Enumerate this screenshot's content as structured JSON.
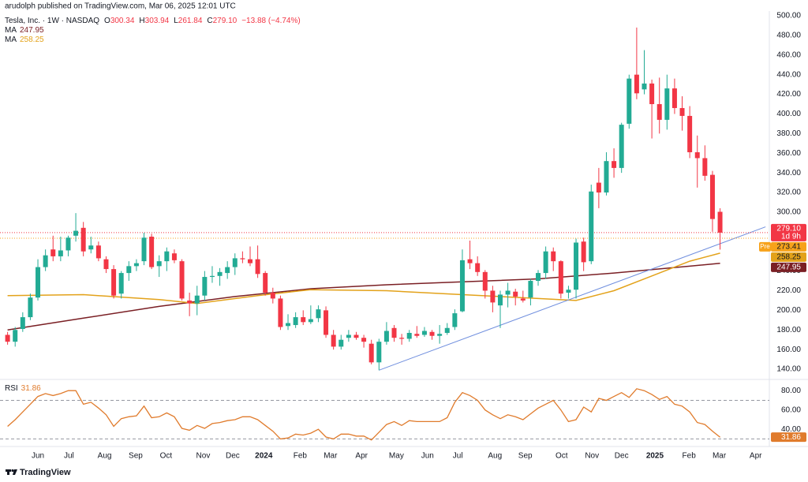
{
  "chart_data": [
    {
      "type": "candlestick",
      "publisher": "arudolph published on TradingView.com, Mar 06, 2025 12:01 UTC",
      "title": "Tesla, Inc. · 1W · NASDAQ",
      "legend": {
        "open": "O",
        "high": "H",
        "low": "L",
        "close": "C",
        "close_value": "279.10",
        "change": "−13.88 (−4.74%)"
      },
      "up_color": "#22ab94",
      "down_color": "#f23645",
      "open": [
        175,
        168,
        181,
        193,
        213,
        244,
        262,
        255,
        261,
        276,
        284,
        262,
        266,
        252,
        242,
        217,
        238,
        245,
        250,
        275,
        245,
        250,
        258,
        250,
        210,
        207,
        215,
        234,
        235,
        238,
        244,
        253,
        252,
        252,
        238,
        218,
        212,
        184,
        185,
        193,
        188,
        192,
        200,
        175,
        163,
        172,
        175,
        172,
        166,
        147,
        168,
        182,
        172,
        171,
        176,
        175,
        178,
        174,
        177,
        183,
        199,
        252,
        248,
        239,
        220,
        205,
        216,
        219,
        212,
        213,
        230,
        238,
        260,
        250,
        218,
        221,
        270,
        250,
        330,
        320,
        352,
        345,
        390,
        440,
        425,
        431,
        410,
        394,
        426,
        406,
        398,
        361,
        355,
        338,
        300.34
      ],
      "high": [
        178,
        183,
        198,
        217,
        252,
        262,
        276,
        275,
        276,
        299,
        290,
        275,
        270,
        255,
        246,
        240,
        250,
        252,
        279,
        278,
        256,
        264,
        262,
        252,
        218,
        225,
        240,
        245,
        243,
        250,
        258,
        260,
        265,
        266,
        240,
        223,
        215,
        196,
        198,
        200,
        205,
        205,
        204,
        180,
        175,
        180,
        178,
        175,
        170,
        171,
        188,
        185,
        176,
        180,
        184,
        183,
        180,
        185,
        187,
        201,
        262,
        271,
        255,
        241,
        225,
        220,
        228,
        222,
        220,
        232,
        241,
        265,
        264,
        251,
        225,
        273,
        274,
        328,
        345,
        361,
        365,
        391,
        440,
        488,
        465,
        435,
        437,
        440,
        436,
        418,
        408,
        378,
        368,
        342,
        303.94
      ],
      "low": [
        165,
        163,
        178,
        190,
        210,
        240,
        250,
        250,
        255,
        270,
        255,
        258,
        250,
        238,
        212,
        212,
        230,
        240,
        246,
        242,
        234,
        240,
        248,
        210,
        194,
        195,
        210,
        228,
        225,
        232,
        236,
        248,
        245,
        233,
        215,
        207,
        180,
        180,
        182,
        185,
        186,
        188,
        172,
        160,
        160,
        168,
        170,
        162,
        145,
        139,
        165,
        168,
        165,
        168,
        172,
        173,
        170,
        166,
        175,
        180,
        198,
        242,
        235,
        212,
        198,
        182,
        203,
        205,
        208,
        205,
        225,
        232,
        240,
        212,
        212,
        212,
        240,
        247,
        304,
        317,
        335,
        340,
        385,
        415,
        420,
        375,
        380,
        384,
        400,
        383,
        355,
        325,
        332,
        280,
        261.84
      ],
      "close": [
        168,
        180,
        193,
        213,
        244,
        256,
        255,
        261,
        274,
        281,
        260,
        266,
        253,
        242,
        215,
        238,
        245,
        248,
        274,
        244,
        250,
        260,
        251,
        212,
        207,
        215,
        234,
        235,
        239,
        244,
        253,
        252,
        248,
        237,
        218,
        212,
        183,
        187,
        193,
        188,
        191,
        201,
        175,
        163,
        170,
        175,
        172,
        168,
        147,
        168,
        179,
        172,
        171,
        177,
        174,
        179,
        174,
        176,
        182,
        197,
        251,
        248,
        239,
        220,
        208,
        216,
        220,
        214,
        210,
        230,
        238,
        260,
        250,
        217,
        221,
        269,
        249,
        321,
        320,
        352,
        345,
        389,
        436,
        421,
        431,
        410,
        394,
        426,
        406,
        398,
        361,
        355,
        337,
        293,
        279.1
      ],
      "series": [
        {
          "name": "MA",
          "color": "#7a1f24",
          "x": [
            0,
            10,
            20,
            30,
            40,
            50,
            60,
            70,
            80,
            90,
            94
          ],
          "values": [
            180,
            192,
            204,
            214,
            222,
            226,
            229,
            232,
            238,
            245,
            247.95
          ]
        },
        {
          "name": "MA",
          "color": "#e3a21a",
          "x": [
            0,
            10,
            20,
            25,
            33,
            40,
            50,
            60,
            70,
            75,
            80,
            85,
            90,
            94
          ],
          "values": [
            215,
            216,
            211,
            207,
            215,
            221,
            220,
            216,
            212,
            210,
            220,
            235,
            250,
            258.25
          ]
        }
      ],
      "trendline": {
        "color": "#6f8ede",
        "x": [
          49,
          100
        ],
        "values": [
          139,
          285
        ]
      },
      "countdown": "1d 9h",
      "premarket": {
        "label": "Pre",
        "value": 273.41,
        "color": "#f7a21b"
      },
      "xlim": [
        -1,
        100.5
      ],
      "xticks": [
        {
          "value": 4,
          "label": "Jun"
        },
        {
          "value": 8.1,
          "label": "Jul"
        },
        {
          "value": 12.8,
          "label": "Aug"
        },
        {
          "value": 16.9,
          "label": "Sep"
        },
        {
          "value": 20.9,
          "label": "Oct"
        },
        {
          "value": 25.8,
          "label": "Nov"
        },
        {
          "value": 29.7,
          "label": "Dec"
        },
        {
          "value": 33.8,
          "label": "2024"
        },
        {
          "value": 38.6,
          "label": "Feb"
        },
        {
          "value": 42.6,
          "label": "Mar"
        },
        {
          "value": 46.7,
          "label": "Apr"
        },
        {
          "value": 51.3,
          "label": "May"
        },
        {
          "value": 55.4,
          "label": "Jun"
        },
        {
          "value": 59.4,
          "label": "Jul"
        },
        {
          "value": 64.3,
          "label": "Aug"
        },
        {
          "value": 68.3,
          "label": "Sep"
        },
        {
          "value": 73.1,
          "label": "Oct"
        },
        {
          "value": 77.1,
          "label": "Nov"
        },
        {
          "value": 81,
          "label": "Dec"
        },
        {
          "value": 85.4,
          "label": "2025"
        },
        {
          "value": 89.9,
          "label": "Feb"
        },
        {
          "value": 93.9,
          "label": "Mar"
        },
        {
          "value": 98.7,
          "label": "Apr"
        }
      ],
      "ylim": [
        132,
        504
      ],
      "yticks": [
        {
          "value": 500,
          "label": "500.00"
        },
        {
          "value": 480,
          "label": "480.00"
        },
        {
          "value": 460,
          "label": "460.00"
        },
        {
          "value": 440,
          "label": "440.00"
        },
        {
          "value": 420,
          "label": "420.00"
        },
        {
          "value": 400,
          "label": "400.00"
        },
        {
          "value": 380,
          "label": "380.00"
        },
        {
          "value": 360,
          "label": "360.00"
        },
        {
          "value": 340,
          "label": "340.00"
        },
        {
          "value": 320,
          "label": "320.00"
        },
        {
          "value": 300,
          "label": "300.00"
        },
        {
          "value": 240,
          "label": "240.00"
        },
        {
          "value": 220,
          "label": "220.00"
        },
        {
          "value": 200,
          "label": "200.00"
        },
        {
          "value": 180,
          "label": "180.00"
        },
        {
          "value": 160,
          "label": "160.00"
        },
        {
          "value": 140,
          "label": "140.00"
        }
      ],
      "footer": "TradingView"
    },
    {
      "type": "line",
      "name": "RSI",
      "color": "#e07b2c",
      "values": [
        43,
        50,
        58,
        66,
        74,
        77,
        75,
        77,
        80,
        80,
        66,
        68,
        62,
        55,
        43,
        51,
        53,
        54,
        64,
        52,
        53,
        57,
        53,
        41,
        39,
        44,
        41,
        46,
        47,
        49,
        50,
        53,
        53,
        50,
        44,
        38,
        30,
        31,
        35,
        34,
        36,
        40,
        32,
        30,
        35,
        35,
        33,
        33,
        29,
        37,
        45,
        48,
        44,
        49,
        48,
        48,
        48,
        48,
        52,
        68,
        78,
        75,
        70,
        60,
        55,
        51,
        55,
        53,
        50,
        56,
        62,
        66,
        70,
        60,
        48,
        50,
        63,
        58,
        72,
        70,
        74,
        78,
        73,
        82,
        80,
        76,
        71,
        74,
        66,
        64,
        58,
        47,
        45,
        38,
        31.86
      ],
      "levels": [
        70,
        30
      ],
      "ylim": [
        23,
        90
      ],
      "yticks": [
        {
          "value": 80,
          "label": "80.00"
        },
        {
          "value": 60,
          "label": "60.00"
        },
        {
          "value": 40,
          "label": "40.00"
        }
      ]
    }
  ]
}
